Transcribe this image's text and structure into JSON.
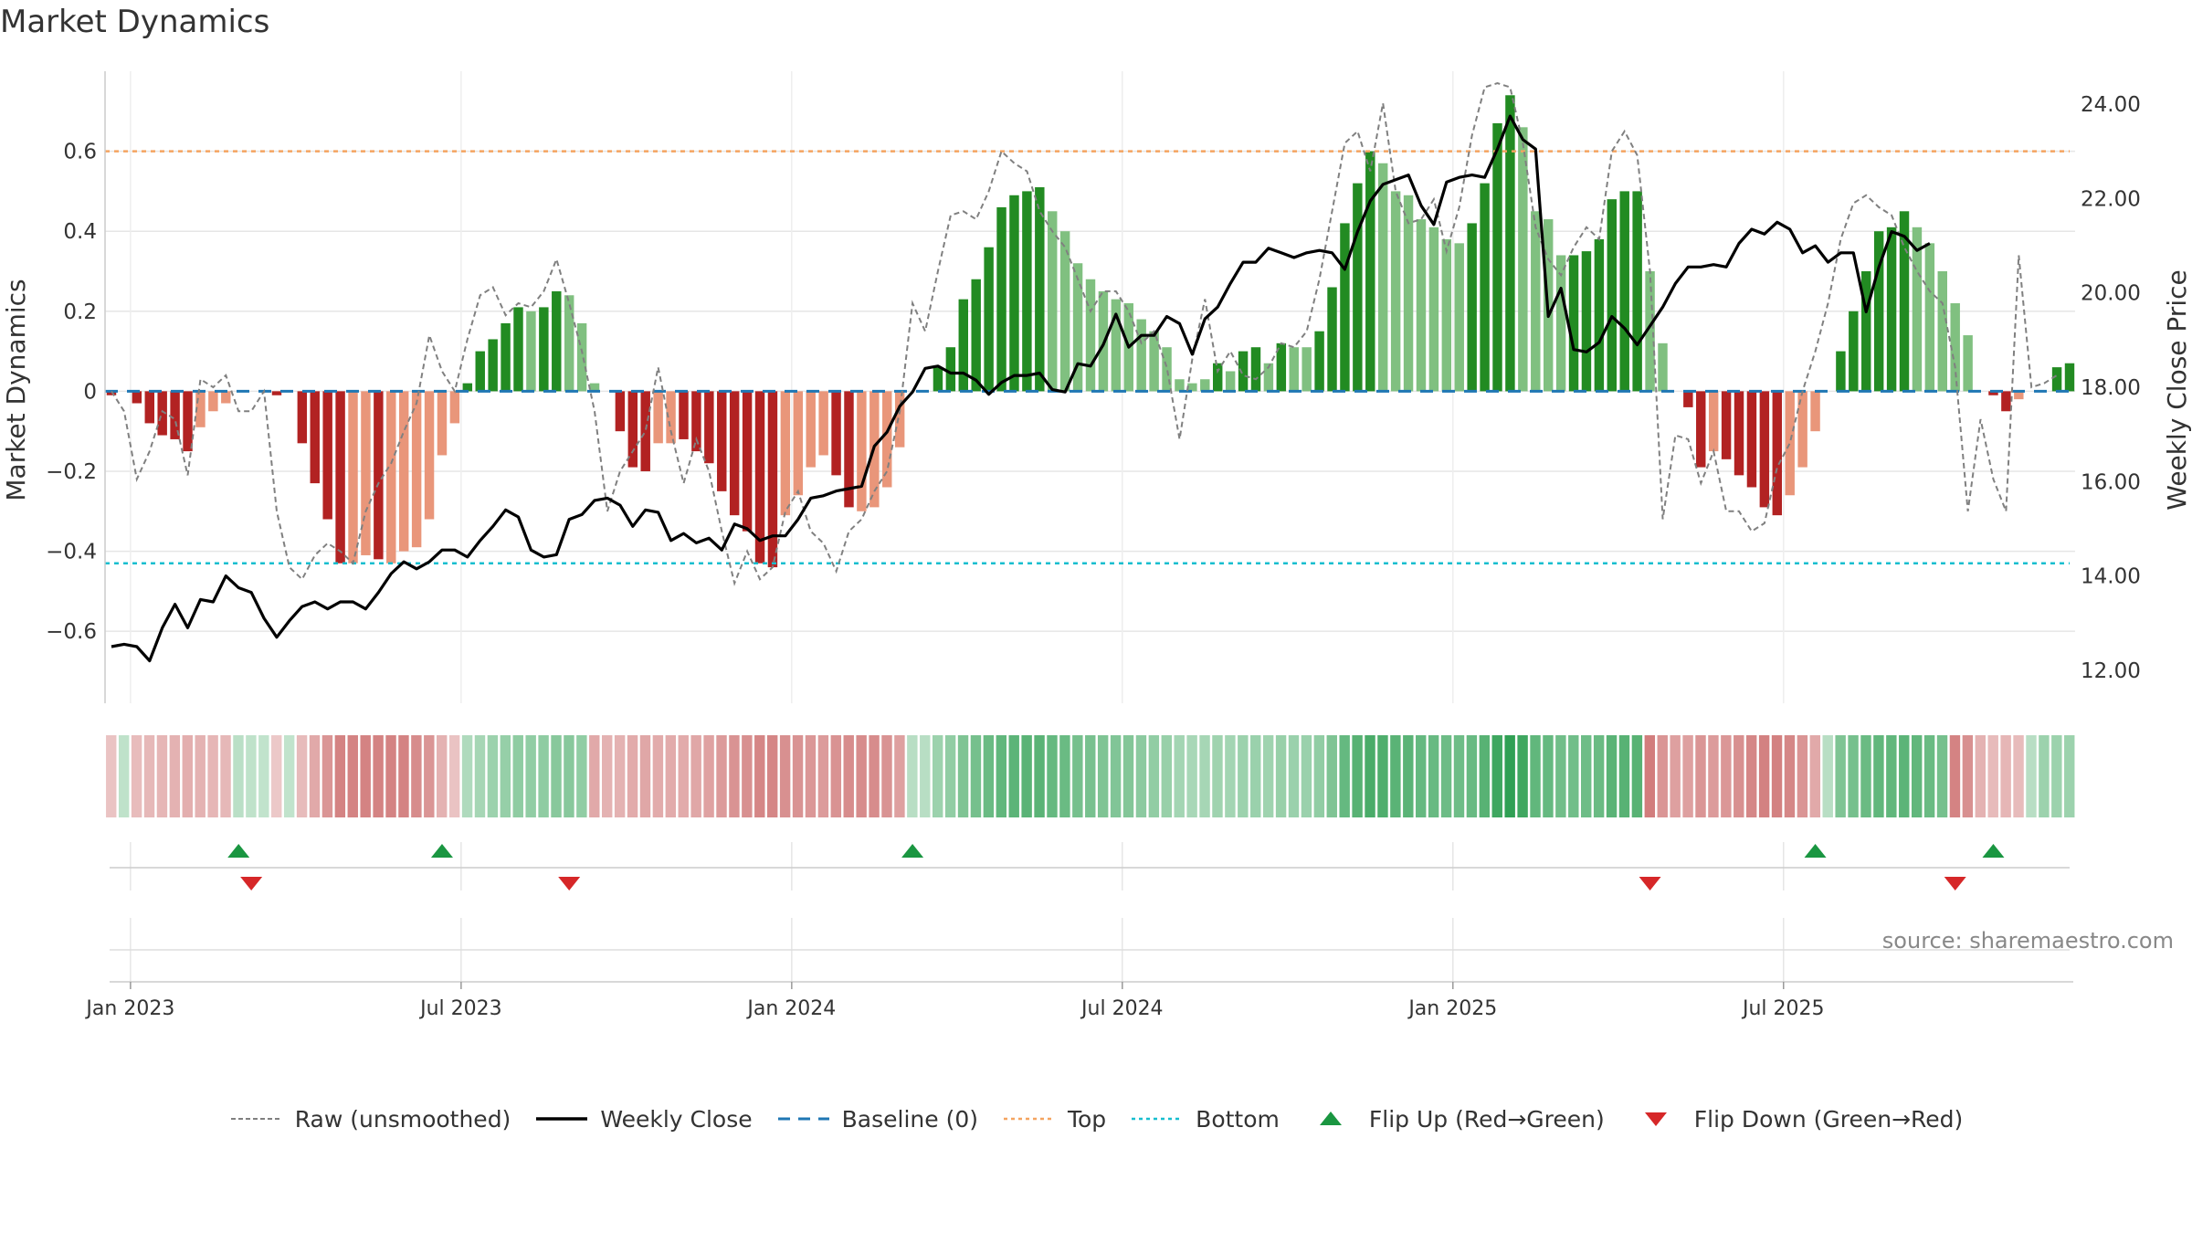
{
  "title": "Market Dynamics",
  "source": "source: sharemaestro.com",
  "colors": {
    "bar_pos_strong": "#228b22",
    "bar_pos_weak": "#80c080",
    "bar_neg_strong": "#b22222",
    "bar_neg_weak": "#e9967a",
    "raw": "#808080",
    "close": "#000000",
    "baseline": "#1f77b4",
    "top": "#f4a460",
    "bottom": "#17becf",
    "flip_up": "#1a9641",
    "flip_down": "#d62728"
  },
  "legend": [
    {
      "label": "Raw (unsmoothed)",
      "kind": "raw"
    },
    {
      "label": "Weekly Close",
      "kind": "close"
    },
    {
      "label": "Baseline (0)",
      "kind": "baseline"
    },
    {
      "label": "Top",
      "kind": "top"
    },
    {
      "label": "Bottom",
      "kind": "bottom"
    },
    {
      "label": "Flip Up (Red→Green)",
      "kind": "flip_up"
    },
    {
      "label": "Flip Down (Green→Red)",
      "kind": "flip_down"
    }
  ],
  "chart_data": {
    "type": "bar",
    "title": "Market Dynamics",
    "ylabel": "Market Dynamics",
    "y2label": "Weekly Close Price",
    "ylim": [
      -0.78,
      0.8
    ],
    "y2lim": [
      11.3,
      24.7
    ],
    "yticks": [
      -0.6,
      -0.4,
      -0.2,
      0,
      0.2,
      0.4,
      0.6
    ],
    "ytick_labels": [
      "−0.6",
      "−0.4",
      "−0.2",
      "0",
      "0.2",
      "0.4",
      "0.6"
    ],
    "y2ticks": [
      12,
      14,
      16,
      18,
      20,
      22,
      24
    ],
    "y2tick_labels": [
      "12.00",
      "14.00",
      "16.00",
      "18.00",
      "20.00",
      "22.00",
      "24.00"
    ],
    "xticks": [
      "Jan 2023",
      "Jul 2023",
      "Jan 2024",
      "Jul 2024",
      "Jan 2025",
      "Jul 2025"
    ],
    "top_level": 0.6,
    "bottom_level": -0.43,
    "baseline": 0,
    "grid": true,
    "legend_position": "bottom",
    "dynamics": [
      -0.01,
      0,
      -0.03,
      -0.08,
      -0.11,
      -0.12,
      -0.15,
      -0.09,
      -0.05,
      -0.03,
      0,
      0,
      0,
      -0.01,
      0,
      -0.13,
      -0.23,
      -0.32,
      -0.43,
      -0.43,
      -0.41,
      -0.42,
      -0.43,
      -0.4,
      -0.39,
      -0.32,
      -0.16,
      -0.08,
      0.02,
      0.1,
      0.13,
      0.17,
      0.21,
      0.2,
      0.21,
      0.25,
      0.24,
      0.17,
      0.02,
      0,
      -0.1,
      -0.19,
      -0.2,
      -0.13,
      -0.13,
      -0.12,
      -0.15,
      -0.18,
      -0.25,
      -0.31,
      -0.35,
      -0.43,
      -0.44,
      -0.31,
      -0.26,
      -0.19,
      -0.16,
      -0.21,
      -0.29,
      -0.3,
      -0.29,
      -0.24,
      -0.14,
      0,
      0,
      0.06,
      0.11,
      0.23,
      0.28,
      0.36,
      0.46,
      0.49,
      0.5,
      0.51,
      0.45,
      0.4,
      0.32,
      0.28,
      0.25,
      0.23,
      0.22,
      0.18,
      0.15,
      0.11,
      0.03,
      0.02,
      0.03,
      0.07,
      0.05,
      0.1,
      0.11,
      0.07,
      0.12,
      0.11,
      0.11,
      0.15,
      0.26,
      0.42,
      0.52,
      0.6,
      0.57,
      0.5,
      0.49,
      0.43,
      0.41,
      0.38,
      0.37,
      0.42,
      0.52,
      0.67,
      0.74,
      0.66,
      0.45,
      0.43,
      0.34,
      0.34,
      0.35,
      0.38,
      0.48,
      0.5,
      0.5,
      0.3,
      0.12,
      0,
      -0.04,
      -0.19,
      -0.15,
      -0.17,
      -0.21,
      -0.24,
      -0.29,
      -0.31,
      -0.26,
      -0.19,
      -0.1,
      0,
      0.1,
      0.2,
      0.3,
      0.4,
      0.41,
      0.45,
      0.41,
      0.37,
      0.3,
      0.22,
      0.14,
      0,
      -0.01,
      -0.05,
      -0.02,
      0,
      0,
      0.06,
      0.07
    ],
    "strong": [
      1,
      0,
      1,
      1,
      1,
      1,
      1,
      0,
      0,
      0,
      0,
      0,
      0,
      1,
      0,
      1,
      1,
      1,
      1,
      0,
      0,
      1,
      0,
      0,
      0,
      0,
      0,
      0,
      1,
      1,
      1,
      1,
      1,
      0,
      1,
      1,
      0,
      0,
      0,
      0,
      1,
      1,
      1,
      0,
      0,
      1,
      1,
      1,
      1,
      1,
      1,
      1,
      1,
      0,
      0,
      0,
      0,
      1,
      1,
      0,
      0,
      0,
      0,
      0,
      0,
      1,
      1,
      1,
      1,
      1,
      1,
      1,
      1,
      1,
      0,
      0,
      0,
      0,
      0,
      0,
      0,
      0,
      0,
      0,
      0,
      0,
      0,
      1,
      0,
      1,
      1,
      0,
      1,
      0,
      0,
      1,
      1,
      1,
      1,
      1,
      0,
      0,
      0,
      0,
      0,
      0,
      0,
      1,
      1,
      1,
      1,
      0,
      0,
      0,
      0,
      1,
      1,
      1,
      1,
      1,
      1,
      0,
      0,
      0,
      1,
      1,
      0,
      1,
      1,
      1,
      1,
      1,
      0,
      0,
      0,
      0,
      1,
      1,
      1,
      1,
      1,
      1,
      0,
      0,
      0,
      0,
      0,
      0,
      1,
      1,
      0,
      0,
      0,
      1,
      1
    ],
    "raw": [
      0,
      -0.05,
      -0.22,
      -0.15,
      -0.05,
      -0.07,
      -0.21,
      0.03,
      0.01,
      0.04,
      -0.05,
      -0.05,
      0,
      -0.3,
      -0.44,
      -0.47,
      -0.41,
      -0.38,
      -0.4,
      -0.43,
      -0.3,
      -0.23,
      -0.18,
      -0.1,
      -0.03,
      0.14,
      0.05,
      0,
      0.13,
      0.24,
      0.26,
      0.19,
      0.22,
      0.21,
      0.25,
      0.33,
      0.22,
      0.1,
      -0.05,
      -0.3,
      -0.2,
      -0.15,
      -0.1,
      0.06,
      -0.1,
      -0.23,
      -0.12,
      -0.2,
      -0.35,
      -0.48,
      -0.4,
      -0.47,
      -0.44,
      -0.3,
      -0.25,
      -0.35,
      -0.38,
      -0.45,
      -0.35,
      -0.32,
      -0.25,
      -0.2,
      -0.05,
      0.22,
      0.15,
      0.3,
      0.44,
      0.45,
      0.43,
      0.5,
      0.6,
      0.57,
      0.55,
      0.45,
      0.4,
      0.36,
      0.28,
      0.2,
      0.25,
      0.25,
      0.2,
      0.12,
      0.15,
      0.06,
      -0.12,
      0.08,
      0.23,
      0.05,
      0.1,
      0.04,
      0.03,
      0.06,
      0.12,
      0.11,
      0.15,
      0.28,
      0.45,
      0.62,
      0.65,
      0.55,
      0.72,
      0.5,
      0.42,
      0.43,
      0.48,
      0.35,
      0.46,
      0.64,
      0.76,
      0.77,
      0.76,
      0.62,
      0.41,
      0.33,
      0.29,
      0.36,
      0.41,
      0.38,
      0.6,
      0.65,
      0.59,
      0.3,
      -0.32,
      -0.11,
      -0.12,
      -0.23,
      -0.15,
      -0.3,
      -0.3,
      -0.35,
      -0.33,
      -0.19,
      -0.13,
      0,
      0.1,
      0.22,
      0.38,
      0.47,
      0.49,
      0.46,
      0.44,
      0.36,
      0.3,
      0.25,
      0.22,
      0.06,
      -0.3,
      -0.07,
      -0.22,
      -0.3,
      0.34,
      0.01,
      0.02,
      0.04
    ],
    "close": [
      12.5,
      12.55,
      12.5,
      12.2,
      12.9,
      13.4,
      12.9,
      13.5,
      13.45,
      14.0,
      13.75,
      13.65,
      13.1,
      12.7,
      13.05,
      13.35,
      13.45,
      13.3,
      13.45,
      13.45,
      13.3,
      13.65,
      14.05,
      14.3,
      14.15,
      14.3,
      14.55,
      14.55,
      14.4,
      14.75,
      15.05,
      15.4,
      15.25,
      14.55,
      14.4,
      14.45,
      15.2,
      15.3,
      15.6,
      15.65,
      15.5,
      15.05,
      15.4,
      15.35,
      14.75,
      14.9,
      14.7,
      14.8,
      14.55,
      15.1,
      15.0,
      14.75,
      14.85,
      14.85,
      15.2,
      15.65,
      15.7,
      15.8,
      15.85,
      15.9,
      16.75,
      17.05,
      17.6,
      17.9,
      18.4,
      18.45,
      18.3,
      18.3,
      18.15,
      17.85,
      18.1,
      18.25,
      18.25,
      18.3,
      17.95,
      17.9,
      18.5,
      18.45,
      18.9,
      19.55,
      18.85,
      19.1,
      19.1,
      19.5,
      19.35,
      18.7,
      19.45,
      19.7,
      20.2,
      20.65,
      20.65,
      20.95,
      20.85,
      20.75,
      20.85,
      20.9,
      20.85,
      20.5,
      21.3,
      21.95,
      22.3,
      22.4,
      22.5,
      21.85,
      21.45,
      22.35,
      22.45,
      22.5,
      22.45,
      23.05,
      23.75,
      23.25,
      23.05,
      19.5,
      20.1,
      18.8,
      18.75,
      18.95,
      19.5,
      19.25,
      18.9,
      19.3,
      19.7,
      20.2,
      20.55,
      20.55,
      20.6,
      20.55,
      21.05,
      21.35,
      21.25,
      21.5,
      21.35,
      20.85,
      21.0,
      20.65,
      20.85,
      20.85,
      19.6,
      20.55,
      21.3,
      21.2,
      20.9,
      21.05
    ],
    "heat": [
      0.1,
      0.12,
      0.14,
      0.16,
      0.18,
      0.2,
      0.22,
      0.2,
      0.18,
      0.16,
      0.14,
      0.12,
      0.1,
      0.08,
      0.1,
      0.15,
      0.25,
      0.35,
      0.45,
      0.45,
      0.45,
      0.45,
      0.45,
      0.45,
      0.4,
      0.35,
      0.2,
      0.1,
      0.2,
      0.25,
      0.3,
      0.33,
      0.36,
      0.35,
      0.36,
      0.4,
      0.4,
      0.35,
      0.25,
      0.2,
      0.2,
      0.24,
      0.26,
      0.24,
      0.24,
      0.24,
      0.26,
      0.28,
      0.32,
      0.36,
      0.38,
      0.44,
      0.44,
      0.38,
      0.36,
      0.34,
      0.32,
      0.36,
      0.4,
      0.4,
      0.4,
      0.36,
      0.3,
      0.15,
      0.15,
      0.3,
      0.35,
      0.45,
      0.5,
      0.55,
      0.6,
      0.62,
      0.63,
      0.63,
      0.58,
      0.55,
      0.5,
      0.48,
      0.45,
      0.43,
      0.42,
      0.38,
      0.35,
      0.32,
      0.26,
      0.24,
      0.25,
      0.28,
      0.26,
      0.3,
      0.31,
      0.28,
      0.32,
      0.31,
      0.31,
      0.35,
      0.45,
      0.58,
      0.65,
      0.72,
      0.7,
      0.64,
      0.63,
      0.58,
      0.56,
      0.54,
      0.53,
      0.57,
      0.65,
      0.78,
      0.85,
      0.78,
      0.6,
      0.58,
      0.52,
      0.52,
      0.53,
      0.55,
      0.63,
      0.65,
      0.65,
      0.48,
      0.35,
      0.3,
      0.3,
      0.35,
      0.32,
      0.34,
      0.38,
      0.42,
      0.46,
      0.46,
      0.42,
      0.35,
      0.25,
      0.15,
      0.45,
      0.5,
      0.55,
      0.6,
      0.6,
      0.62,
      0.6,
      0.55,
      0.5,
      0.45,
      0.38,
      0.2,
      0.15,
      0.18,
      0.15,
      0.15,
      0.3,
      0.3,
      0.3
    ],
    "flips": [
      {
        "type": "up",
        "index": 10
      },
      {
        "type": "down",
        "index": 11
      },
      {
        "type": "up",
        "index": 26
      },
      {
        "type": "down",
        "index": 36
      },
      {
        "type": "up",
        "index": 63
      },
      {
        "type": "down",
        "index": 121
      },
      {
        "type": "up",
        "index": 134
      },
      {
        "type": "down",
        "index": 145
      },
      {
        "type": "up",
        "index": 148
      }
    ]
  }
}
